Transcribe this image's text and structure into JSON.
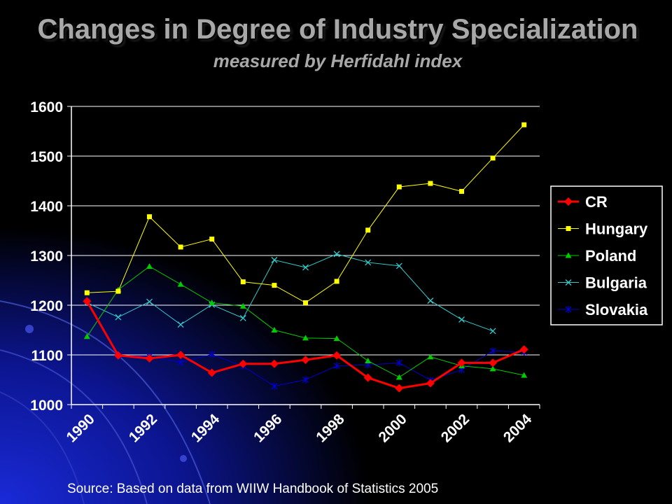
{
  "title": "Changes in Degree of Industry Specialization",
  "subtitle": "measured by Herfidahl index",
  "source": "Source: Based on data from WIIW Handbook of Statistics 2005",
  "chart_data": {
    "type": "line",
    "x": [
      1990,
      1991,
      1992,
      1993,
      1994,
      1995,
      1996,
      1997,
      1998,
      1999,
      2000,
      2001,
      2002,
      2003,
      2004
    ],
    "x_tick_labels": [
      "1990",
      "1992",
      "1994",
      "1996",
      "1998",
      "2000",
      "2002",
      "2004"
    ],
    "ylim": [
      1000,
      1600
    ],
    "y_ticks": [
      1000,
      1100,
      1200,
      1300,
      1400,
      1500,
      1600
    ],
    "grid": "horizontal",
    "legend_position": "right",
    "series": [
      {
        "name": "CR",
        "color": "#ff0000",
        "marker": "diamond",
        "values": [
          1208,
          1099,
          1093,
          1100,
          1064,
          1082,
          1082,
          1090,
          1099,
          1054,
          1033,
          1043,
          1084,
          1084,
          1111
        ]
      },
      {
        "name": "Hungary",
        "color": "#ffff00",
        "marker": "square",
        "values": [
          1225,
          1228,
          1378,
          1317,
          1333,
          1247,
          1240,
          1205,
          1248,
          1351,
          1438,
          1445,
          1429,
          1496,
          1563
        ]
      },
      {
        "name": "Poland",
        "color": "#00cc00",
        "marker": "triangle",
        "values": [
          1137,
          1231,
          1278,
          1242,
          1205,
          1198,
          1150,
          1134,
          1133,
          1088,
          1055,
          1096,
          1078,
          1072,
          1059
        ]
      },
      {
        "name": "Bulgaria",
        "color": "#33cccc",
        "marker": "x",
        "values": [
          1205,
          1176,
          1207,
          1161,
          1201,
          1174,
          1291,
          1276,
          1303,
          1286,
          1279,
          1209,
          1171,
          1148,
          null
        ]
      },
      {
        "name": "Slovakia",
        "color": "#0000cc",
        "marker": "star",
        "values": [
          1208,
          1099,
          1097,
          1085,
          1101,
          1077,
          1037,
          1050,
          1078,
          1080,
          1084,
          1049,
          1070,
          1108,
          1106
        ]
      }
    ]
  }
}
